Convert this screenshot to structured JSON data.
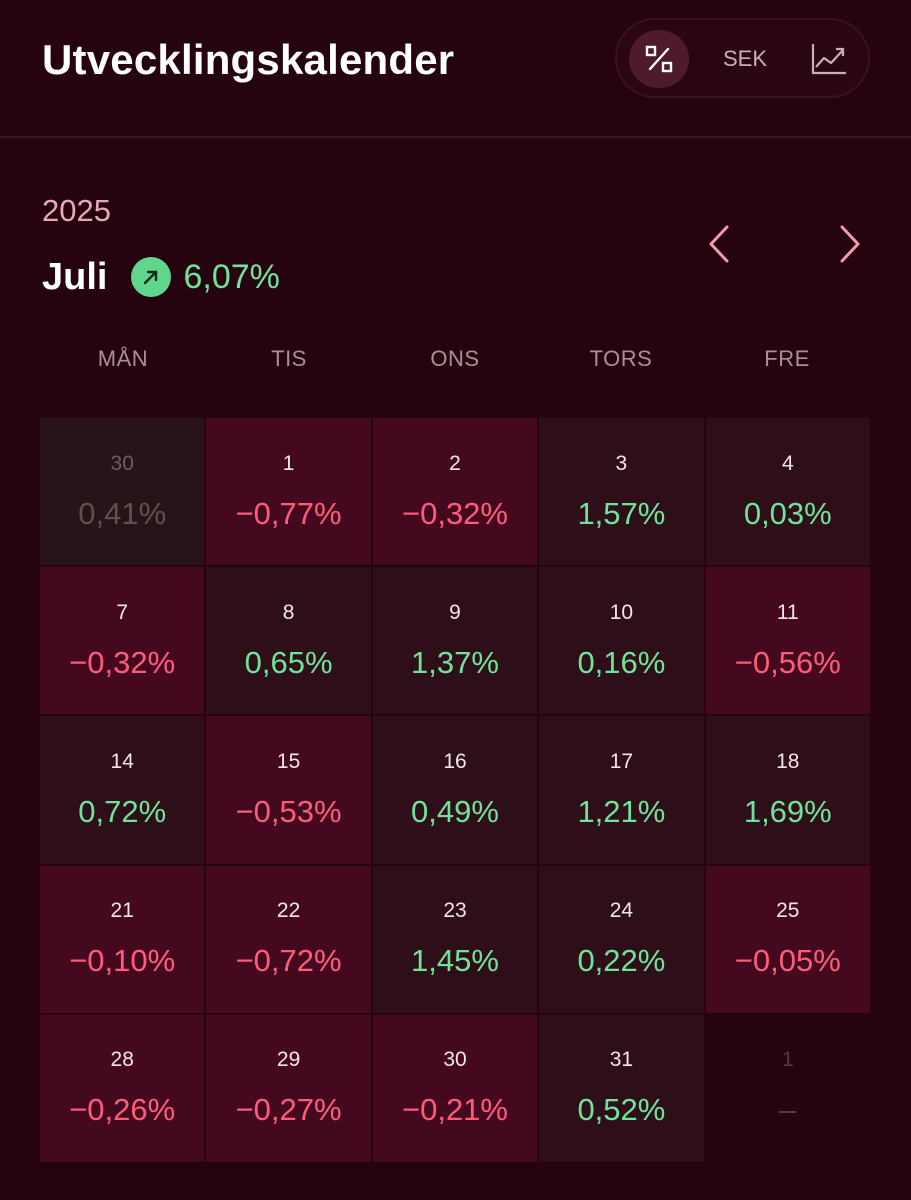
{
  "header": {
    "title": "Utvecklingskalender",
    "toggle": {
      "percent_icon": "percent-icon",
      "sek_label": "SEK",
      "chart_icon": "trend-chart-icon"
    }
  },
  "period": {
    "year": "2025",
    "month": "Juli",
    "month_change": "6,07%",
    "trend_icon": "arrow-up-right-icon",
    "prev_icon": "chevron-left-icon",
    "next_icon": "chevron-right-icon"
  },
  "weekdays": [
    "MÅN",
    "TIS",
    "ONS",
    "TORS",
    "FRE"
  ],
  "days": [
    {
      "day": "30",
      "value": "0,41%",
      "state": "faded"
    },
    {
      "day": "1",
      "value": "−0,77%",
      "state": "neg"
    },
    {
      "day": "2",
      "value": "−0,32%",
      "state": "neg"
    },
    {
      "day": "3",
      "value": "1,57%",
      "state": "pos"
    },
    {
      "day": "4",
      "value": "0,03%",
      "state": "pos"
    },
    {
      "day": "7",
      "value": "−0,32%",
      "state": "neg"
    },
    {
      "day": "8",
      "value": "0,65%",
      "state": "pos"
    },
    {
      "day": "9",
      "value": "1,37%",
      "state": "pos"
    },
    {
      "day": "10",
      "value": "0,16%",
      "state": "pos"
    },
    {
      "day": "11",
      "value": "−0,56%",
      "state": "neg"
    },
    {
      "day": "14",
      "value": "0,72%",
      "state": "pos"
    },
    {
      "day": "15",
      "value": "−0,53%",
      "state": "neg"
    },
    {
      "day": "16",
      "value": "0,49%",
      "state": "pos"
    },
    {
      "day": "17",
      "value": "1,21%",
      "state": "pos"
    },
    {
      "day": "18",
      "value": "1,69%",
      "state": "pos"
    },
    {
      "day": "21",
      "value": "−0,10%",
      "state": "neg"
    },
    {
      "day": "22",
      "value": "−0,72%",
      "state": "neg"
    },
    {
      "day": "23",
      "value": "1,45%",
      "state": "pos"
    },
    {
      "day": "24",
      "value": "0,22%",
      "state": "pos"
    },
    {
      "day": "25",
      "value": "−0,05%",
      "state": "neg"
    },
    {
      "day": "28",
      "value": "−0,26%",
      "state": "neg"
    },
    {
      "day": "29",
      "value": "−0,27%",
      "state": "neg"
    },
    {
      "day": "30",
      "value": "−0,21%",
      "state": "neg"
    },
    {
      "day": "31",
      "value": "0,52%",
      "state": "pos"
    },
    {
      "day": "1",
      "value": "–",
      "state": "empty"
    }
  ],
  "colors": {
    "background": "#25040f",
    "negative_cell": "#45091f",
    "positive_cell": "#2e0f19",
    "negative_text": "#ff5c7a",
    "positive_text": "#6fe39a"
  }
}
